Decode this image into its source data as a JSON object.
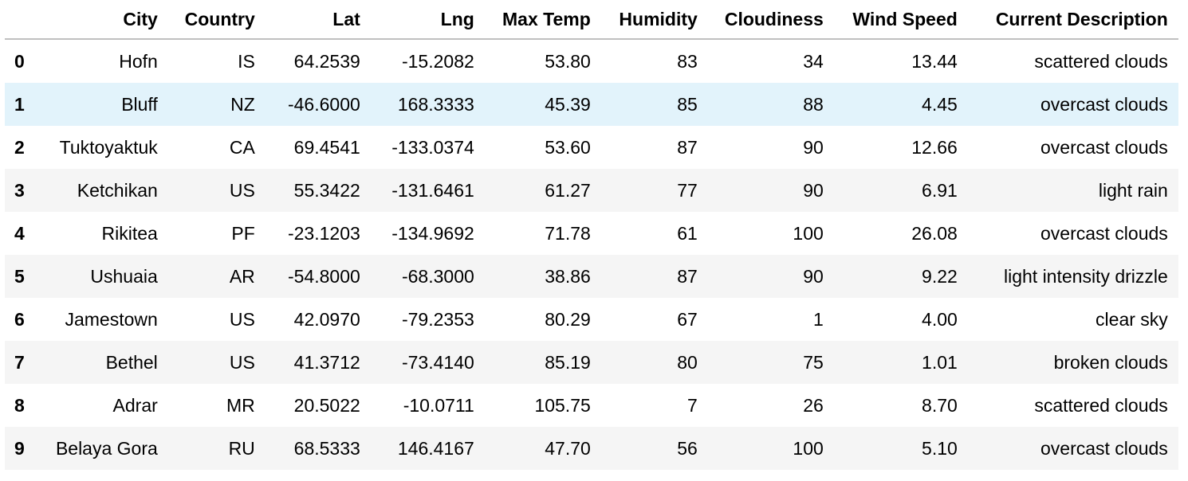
{
  "columns": [
    "",
    "City",
    "Country",
    "Lat",
    "Lng",
    "Max Temp",
    "Humidity",
    "Cloudiness",
    "Wind Speed",
    "Current Description"
  ],
  "highlight_row": 1,
  "rows": [
    {
      "idx": "0",
      "cells": [
        "Hofn",
        "IS",
        "64.2539",
        "-15.2082",
        "53.80",
        "83",
        "34",
        "13.44",
        "scattered clouds"
      ]
    },
    {
      "idx": "1",
      "cells": [
        "Bluff",
        "NZ",
        "-46.6000",
        "168.3333",
        "45.39",
        "85",
        "88",
        "4.45",
        "overcast clouds"
      ]
    },
    {
      "idx": "2",
      "cells": [
        "Tuktoyaktuk",
        "CA",
        "69.4541",
        "-133.0374",
        "53.60",
        "87",
        "90",
        "12.66",
        "overcast clouds"
      ]
    },
    {
      "idx": "3",
      "cells": [
        "Ketchikan",
        "US",
        "55.3422",
        "-131.6461",
        "61.27",
        "77",
        "90",
        "6.91",
        "light rain"
      ]
    },
    {
      "idx": "4",
      "cells": [
        "Rikitea",
        "PF",
        "-23.1203",
        "-134.9692",
        "71.78",
        "61",
        "100",
        "26.08",
        "overcast clouds"
      ]
    },
    {
      "idx": "5",
      "cells": [
        "Ushuaia",
        "AR",
        "-54.8000",
        "-68.3000",
        "38.86",
        "87",
        "90",
        "9.22",
        "light intensity drizzle"
      ]
    },
    {
      "idx": "6",
      "cells": [
        "Jamestown",
        "US",
        "42.0970",
        "-79.2353",
        "80.29",
        "67",
        "1",
        "4.00",
        "clear sky"
      ]
    },
    {
      "idx": "7",
      "cells": [
        "Bethel",
        "US",
        "41.3712",
        "-73.4140",
        "85.19",
        "80",
        "75",
        "1.01",
        "broken clouds"
      ]
    },
    {
      "idx": "8",
      "cells": [
        "Adrar",
        "MR",
        "20.5022",
        "-10.0711",
        "105.75",
        "7",
        "26",
        "8.70",
        "scattered clouds"
      ]
    },
    {
      "idx": "9",
      "cells": [
        "Belaya Gora",
        "RU",
        "68.5333",
        "146.4167",
        "47.70",
        "56",
        "100",
        "5.10",
        "overcast clouds"
      ]
    }
  ]
}
